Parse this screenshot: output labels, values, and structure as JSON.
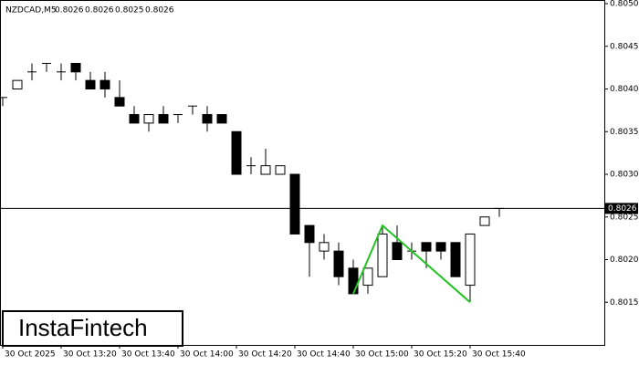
{
  "chart_data": {
    "type": "candlestick",
    "title": "NZDCAD,M5",
    "header_values": [
      0.8026,
      0.8026,
      0.8025,
      0.8026
    ],
    "logo": "InstaFintech",
    "categories": [
      "30 Oct 2025",
      null,
      null,
      null,
      "30 Oct 13:20",
      null,
      null,
      null,
      "30 Oct 13:40",
      null,
      null,
      null,
      "30 Oct 14:00",
      null,
      null,
      null,
      "30 Oct 14:20",
      null,
      null,
      null,
      "30 Oct 14:40",
      null,
      null,
      null,
      "30 Oct 15:00",
      null,
      null,
      null,
      "30 Oct 15:20",
      null,
      null,
      null,
      "30 Oct 15:40",
      null,
      null
    ],
    "open": [
      0.8039,
      0.804,
      0.8042,
      0.8043,
      0.8042,
      0.8043,
      0.8041,
      0.8041,
      0.8039,
      0.8037,
      0.8036,
      0.8037,
      0.8037,
      0.8038,
      0.8037,
      0.8037,
      0.8035,
      0.8031,
      0.803,
      0.803,
      0.803,
      0.8024,
      0.8021,
      0.8021,
      0.8019,
      0.8017,
      0.8018,
      0.8022,
      0.8021,
      0.8022,
      0.8022,
      0.8022,
      0.8017,
      0.8024,
      0.8026
    ],
    "high": [
      0.8039,
      0.8041,
      0.8043,
      0.8043,
      0.8043,
      0.8043,
      0.8042,
      0.8042,
      0.8041,
      0.8038,
      0.8037,
      0.8038,
      0.8037,
      0.8038,
      0.8038,
      0.8037,
      0.8035,
      0.8032,
      0.8033,
      0.8031,
      0.803,
      0.8024,
      0.8023,
      0.8022,
      0.802,
      0.8019,
      0.8024,
      0.8024,
      0.8022,
      0.8022,
      0.8022,
      0.8022,
      0.8023,
      0.8025,
      0.8026
    ],
    "low": [
      0.8038,
      0.804,
      0.8041,
      0.8042,
      0.8041,
      0.8041,
      0.804,
      0.8039,
      0.8038,
      0.8036,
      0.8035,
      0.8036,
      0.8036,
      0.8037,
      0.8035,
      0.8036,
      0.803,
      0.803,
      0.803,
      0.803,
      0.8023,
      0.8018,
      0.802,
      0.8017,
      0.8016,
      0.8016,
      0.8018,
      0.802,
      0.802,
      0.8019,
      0.802,
      0.8018,
      0.8015,
      0.8024,
      0.8025
    ],
    "close": [
      0.8039,
      0.8041,
      0.8042,
      0.8043,
      0.8042,
      0.8042,
      0.804,
      0.804,
      0.8038,
      0.8036,
      0.8037,
      0.8036,
      0.8037,
      0.8038,
      0.8036,
      0.8036,
      0.803,
      0.8031,
      0.8031,
      0.8031,
      0.8023,
      0.8022,
      0.8022,
      0.8018,
      0.8016,
      0.8019,
      0.8023,
      0.802,
      0.8021,
      0.8021,
      0.8021,
      0.8018,
      0.8023,
      0.8025,
      0.8026
    ],
    "up_color": "#ffffff",
    "down_color": "#000000",
    "current_price": 0.8026,
    "pattern": {
      "color": "#22c322",
      "index": [
        24,
        26,
        32
      ],
      "values": [
        0.8016,
        0.8024,
        0.8015
      ]
    },
    "ylim": [
      0.801,
      0.805
    ],
    "yticks": [
      0.8015,
      {
        "value": 0.802,
        "label": "0.8020"
      },
      0.8025,
      {
        "value": 0.803,
        "label": "0.8030"
      },
      0.8035,
      {
        "value": 0.804,
        "label": "0.8040"
      },
      0.8045,
      {
        "value": 0.805,
        "label": "0.8050"
      }
    ]
  }
}
